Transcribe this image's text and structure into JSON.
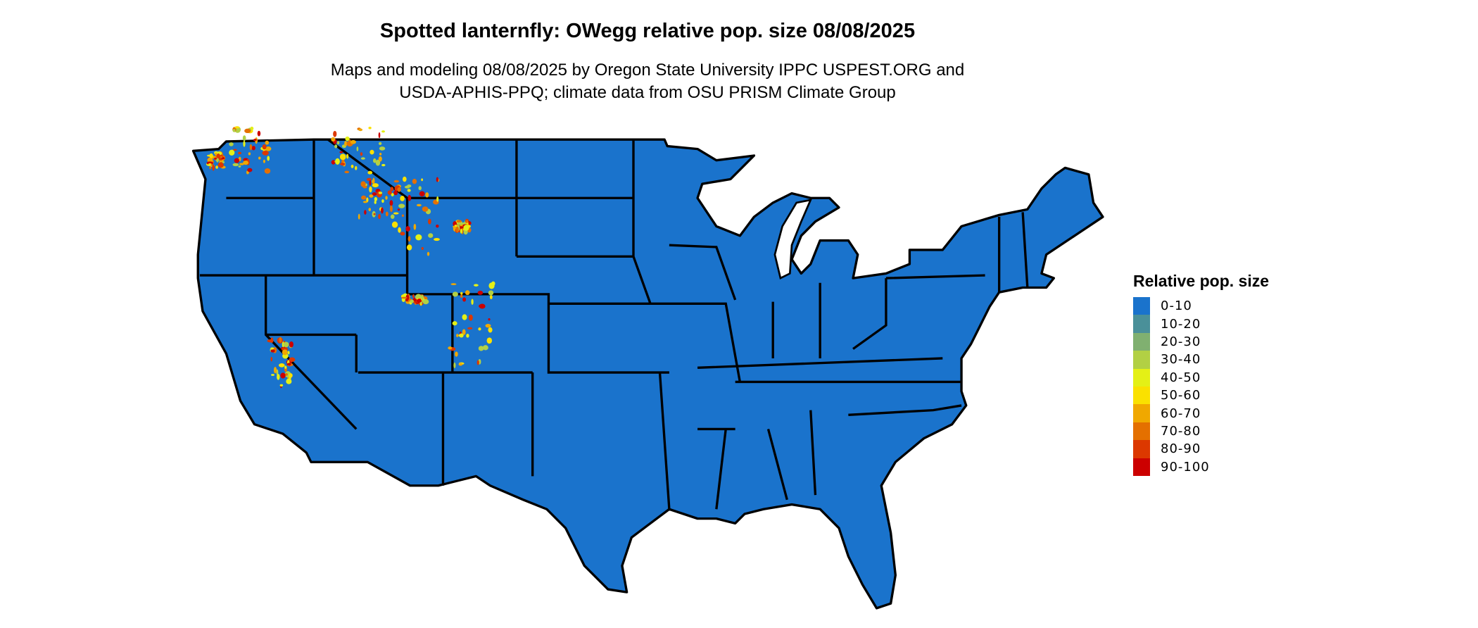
{
  "title": "Spotted lanternfly: OWegg relative pop. size 08/08/2025",
  "subtitle_lines": [
    "Maps and modeling 08/08/2025 by Oregon State University IPPC USPEST.ORG and",
    "USDA-APHIS-PPQ; climate data from OSU PRISM Climate Group"
  ],
  "map": {
    "region": "Contiguous United States, state boundaries",
    "dominant_class": "0-10",
    "hotspot_regions": [
      "Washington Cascades",
      "Northern Idaho / Montana Rockies",
      "Western Wyoming",
      "Colorado Rockies",
      "Utah Wasatch",
      "Sierra Nevada, California"
    ]
  },
  "legend": {
    "title": "Relative pop. size",
    "items": [
      {
        "label": "0-10",
        "color": "#1a73cc"
      },
      {
        "label": "10-20",
        "color": "#4a9099"
      },
      {
        "label": "20-30",
        "color": "#80b070"
      },
      {
        "label": "30-40",
        "color": "#b2d044"
      },
      {
        "label": "40-50",
        "color": "#e4f016"
      },
      {
        "label": "50-60",
        "color": "#fae100"
      },
      {
        "label": "60-70",
        "color": "#f0a800"
      },
      {
        "label": "70-80",
        "color": "#e47000"
      },
      {
        "label": "80-90",
        "color": "#dc3800"
      },
      {
        "label": "90-100",
        "color": "#cc0000"
      }
    ]
  }
}
